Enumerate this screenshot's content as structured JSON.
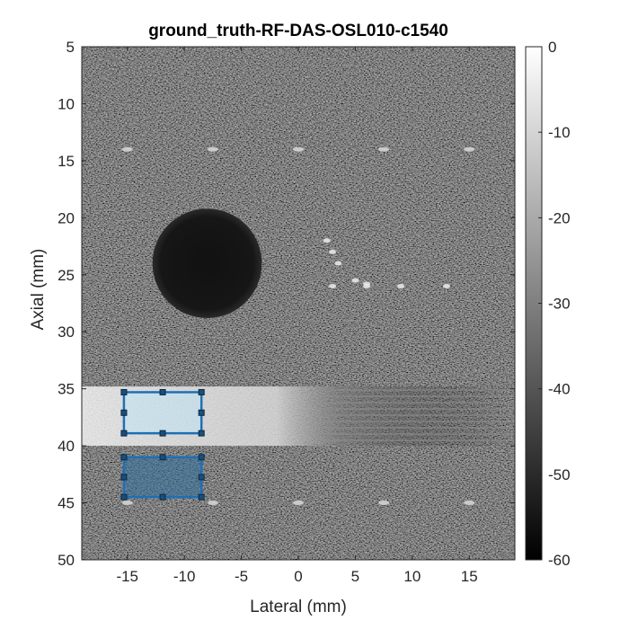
{
  "chart_data": {
    "type": "heatmap",
    "title": "ground_truth-RF-DAS-OSL010-c1540",
    "xlabel": "Lateral (mm)",
    "ylabel": "Axial (mm)",
    "xlim": [
      -19,
      19
    ],
    "ylim": [
      5,
      50
    ],
    "y_reversed": true,
    "x_ticks": [
      -15,
      -10,
      -5,
      0,
      5,
      10,
      15
    ],
    "y_ticks": [
      5,
      10,
      15,
      20,
      25,
      30,
      35,
      40,
      45,
      50
    ],
    "colorbar": {
      "ticks": [
        0,
        -10,
        -20,
        -30,
        -40,
        -50,
        -60
      ],
      "range": [
        -60,
        0
      ],
      "colormap": "gray"
    },
    "features": {
      "anechoic_cyst": {
        "center": [
          -8,
          24
        ],
        "radius": 4.8
      },
      "hyperechoic_band": {
        "axial_range": [
          34.8,
          40
        ],
        "lateral_range": [
          -19,
          0
        ]
      },
      "point_target_rows": [
        {
          "axial": 14,
          "lateral": [
            -15,
            -7.5,
            0,
            7.5,
            15
          ]
        },
        {
          "axial": 45,
          "lateral": [
            -15,
            -7.5,
            0,
            7.5,
            15
          ]
        }
      ],
      "scatter_cluster": [
        {
          "lateral": 2.5,
          "axial": 22
        },
        {
          "lateral": 3,
          "axial": 23
        },
        {
          "lateral": 3.5,
          "axial": 24
        },
        {
          "lateral": 5,
          "axial": 25.5
        },
        {
          "lateral": 6,
          "axial": 25.8
        },
        {
          "lateral": 3,
          "axial": 26
        },
        {
          "lateral": 6,
          "axial": 26
        },
        {
          "lateral": 9,
          "axial": 26
        },
        {
          "lateral": 13,
          "axial": 26
        }
      ]
    },
    "rois": [
      {
        "name": "roi-inside",
        "lateral": [
          -15.3,
          -8.5
        ],
        "axial": [
          35.3,
          38.9
        ],
        "fill": "#bfe3f5",
        "fill_opacity": 0.55
      },
      {
        "name": "roi-outside",
        "lateral": [
          -15.3,
          -8.5
        ],
        "axial": [
          41.0,
          44.5
        ],
        "fill": "#2f6f9f",
        "fill_opacity": 0.55
      }
    ],
    "roi_edge_color": "#1f6fb5"
  }
}
